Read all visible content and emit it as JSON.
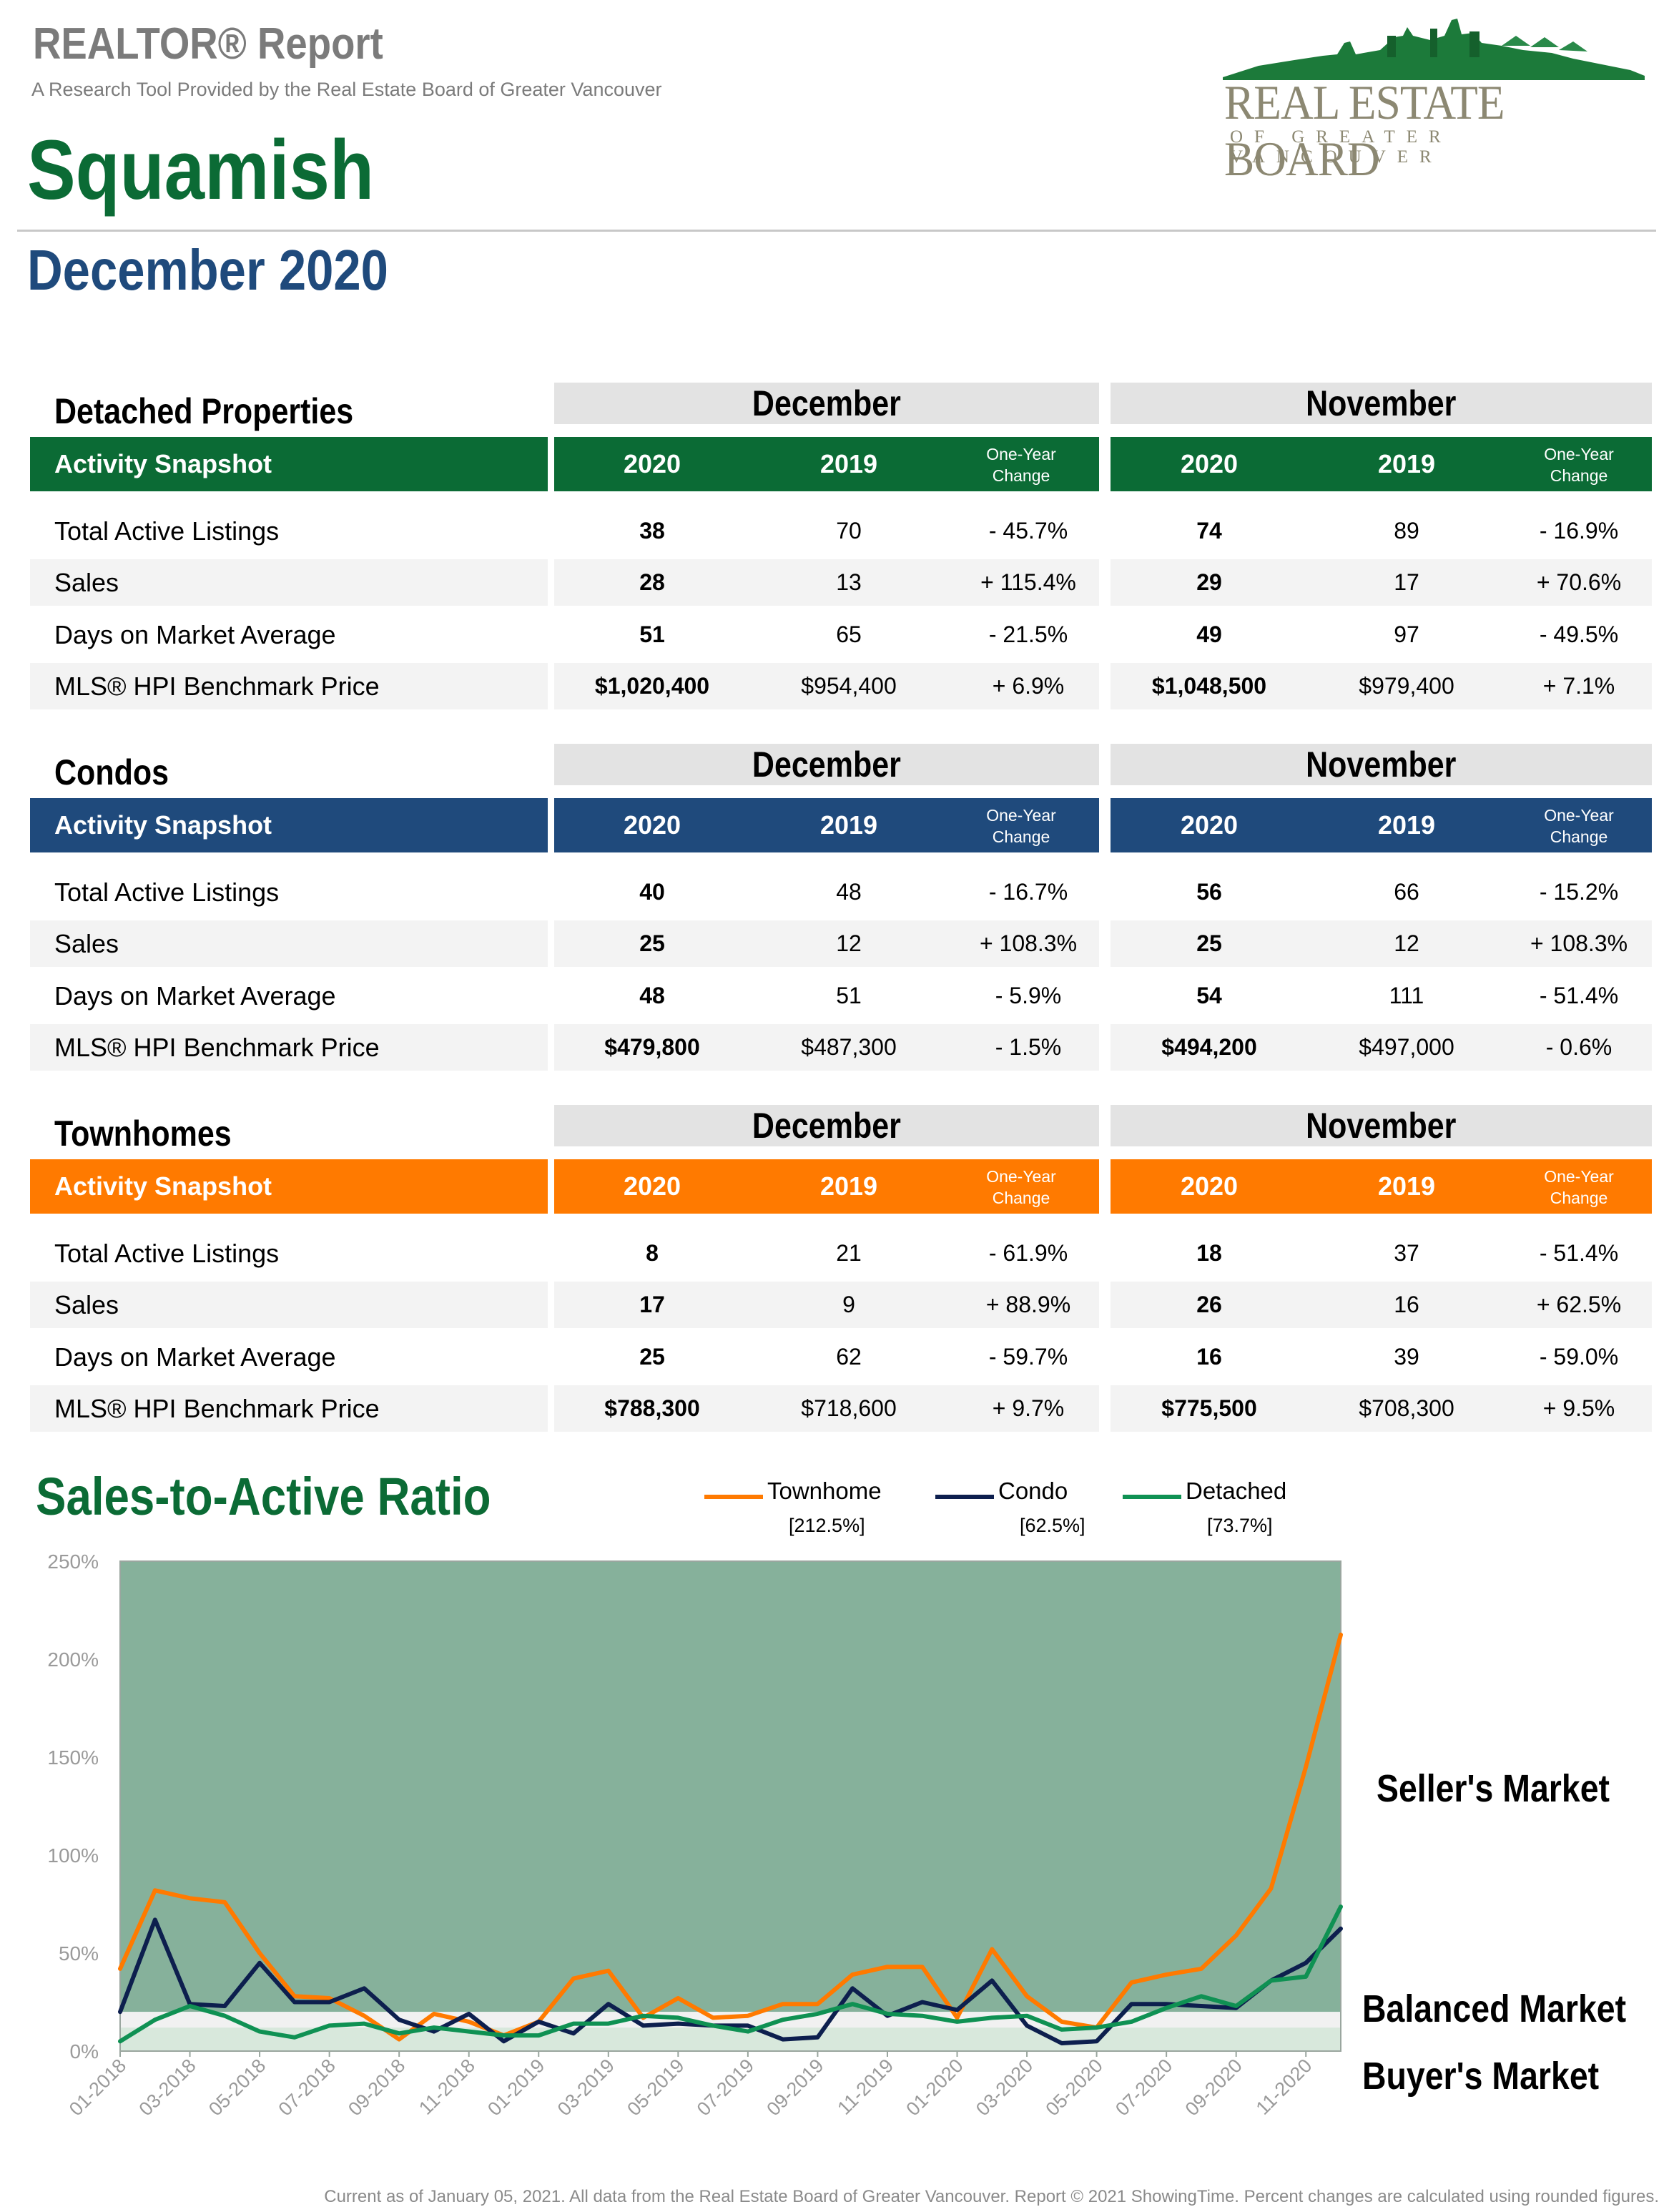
{
  "header": {
    "report_title": "REALTOR® Report",
    "subtitle": "A Research Tool Provided by the Real Estate Board of Greater Vancouver",
    "area": "Squamish",
    "period": "December 2020"
  },
  "logo": {
    "name": "REAL ESTATE BOARD",
    "sub": "OF GREATER VANCOUVER",
    "icon": "city-skyline-logo"
  },
  "labels": {
    "month_current": "December",
    "month_prior": "November",
    "snapshot": "Activity Snapshot",
    "year_current": "2020",
    "year_prior": "2019",
    "change_line1": "One-Year",
    "change_line2": "Change"
  },
  "sections": [
    {
      "title": "Detached Properties",
      "color": "#0b6b35",
      "rows": [
        {
          "label": "Total Active Listings",
          "dec_2020": "38",
          "dec_2019": "70",
          "dec_change": "- 45.7%",
          "nov_2020": "74",
          "nov_2019": "89",
          "nov_change": "- 16.9%"
        },
        {
          "label": "Sales",
          "dec_2020": "28",
          "dec_2019": "13",
          "dec_change": "+ 115.4%",
          "nov_2020": "29",
          "nov_2019": "17",
          "nov_change": "+ 70.6%"
        },
        {
          "label": "Days on Market Average",
          "dec_2020": "51",
          "dec_2019": "65",
          "dec_change": "- 21.5%",
          "nov_2020": "49",
          "nov_2019": "97",
          "nov_change": "- 49.5%"
        },
        {
          "label": "MLS® HPI Benchmark Price",
          "dec_2020": "$1,020,400",
          "dec_2019": "$954,400",
          "dec_change": "+ 6.9%",
          "nov_2020": "$1,048,500",
          "nov_2019": "$979,400",
          "nov_change": "+ 7.1%"
        }
      ]
    },
    {
      "title": "Condos",
      "color": "#1f4a7c",
      "rows": [
        {
          "label": "Total Active Listings",
          "dec_2020": "40",
          "dec_2019": "48",
          "dec_change": "- 16.7%",
          "nov_2020": "56",
          "nov_2019": "66",
          "nov_change": "- 15.2%"
        },
        {
          "label": "Sales",
          "dec_2020": "25",
          "dec_2019": "12",
          "dec_change": "+ 108.3%",
          "nov_2020": "25",
          "nov_2019": "12",
          "nov_change": "+ 108.3%"
        },
        {
          "label": "Days on Market Average",
          "dec_2020": "48",
          "dec_2019": "51",
          "dec_change": "- 5.9%",
          "nov_2020": "54",
          "nov_2019": "111",
          "nov_change": "- 51.4%"
        },
        {
          "label": "MLS® HPI Benchmark Price",
          "dec_2020": "$479,800",
          "dec_2019": "$487,300",
          "dec_change": "- 1.5%",
          "nov_2020": "$494,200",
          "nov_2019": "$497,000",
          "nov_change": "- 0.6%"
        }
      ]
    },
    {
      "title": "Townhomes",
      "color": "#ff7a00",
      "rows": [
        {
          "label": "Total Active Listings",
          "dec_2020": "8",
          "dec_2019": "21",
          "dec_change": "- 61.9%",
          "nov_2020": "18",
          "nov_2019": "37",
          "nov_change": "- 51.4%"
        },
        {
          "label": "Sales",
          "dec_2020": "17",
          "dec_2019": "9",
          "dec_change": "+ 88.9%",
          "nov_2020": "26",
          "nov_2019": "16",
          "nov_change": "+ 62.5%"
        },
        {
          "label": "Days on Market Average",
          "dec_2020": "25",
          "dec_2019": "62",
          "dec_change": "- 59.7%",
          "nov_2020": "16",
          "nov_2019": "39",
          "nov_change": "- 59.0%"
        },
        {
          "label": "MLS® HPI Benchmark Price",
          "dec_2020": "$788,300",
          "dec_2019": "$718,600",
          "dec_change": "+ 9.7%",
          "nov_2020": "$775,500",
          "nov_2019": "$708,300",
          "nov_change": "+ 9.5%"
        }
      ]
    }
  ],
  "chart_data": {
    "type": "line",
    "title": "Sales-to-Active Ratio",
    "x": [
      "01-2018",
      "02-2018",
      "03-2018",
      "04-2018",
      "05-2018",
      "06-2018",
      "07-2018",
      "08-2018",
      "09-2018",
      "10-2018",
      "11-2018",
      "12-2018",
      "01-2019",
      "02-2019",
      "03-2019",
      "04-2019",
      "05-2019",
      "06-2019",
      "07-2019",
      "08-2019",
      "09-2019",
      "10-2019",
      "11-2019",
      "12-2019",
      "01-2020",
      "02-2020",
      "03-2020",
      "04-2020",
      "05-2020",
      "06-2020",
      "07-2020",
      "08-2020",
      "09-2020",
      "10-2020",
      "11-2020",
      "12-2020"
    ],
    "x_tick_labels": [
      "01-2018",
      "03-2018",
      "05-2018",
      "07-2018",
      "09-2018",
      "11-2018",
      "01-2019",
      "03-2019",
      "05-2019",
      "07-2019",
      "09-2019",
      "11-2019",
      "01-2020",
      "03-2020",
      "05-2020",
      "07-2020",
      "09-2020",
      "11-2020"
    ],
    "y_ticks": [
      "0%",
      "50%",
      "100%",
      "150%",
      "200%",
      "250%"
    ],
    "ylim": [
      0,
      250
    ],
    "series": [
      {
        "name": "Townhome",
        "current": "[212.5%]",
        "color": "#ff7a00",
        "values": [
          42,
          82,
          78,
          76,
          50,
          28,
          27,
          18,
          6,
          19,
          15,
          8,
          15,
          37,
          41,
          17,
          27,
          17,
          18,
          24,
          24,
          39,
          43,
          43,
          17,
          52,
          28,
          15,
          12,
          35,
          39,
          42,
          59,
          83,
          145,
          212.5
        ]
      },
      {
        "name": "Condo",
        "current": "[62.5%]",
        "color": "#0d1f4e",
        "values": [
          20,
          67,
          24,
          23,
          45,
          25,
          25,
          32,
          16,
          10,
          19,
          5,
          15,
          9,
          24,
          13,
          14,
          13,
          13,
          6,
          7,
          32,
          18,
          25,
          21,
          36,
          13,
          4,
          5,
          24,
          24,
          23,
          22,
          36,
          45,
          62.5
        ]
      },
      {
        "name": "Detached",
        "current": "[73.7%]",
        "color": "#0f9153",
        "values": [
          5,
          16,
          23,
          18,
          10,
          7,
          13,
          14,
          9,
          12,
          10,
          8,
          8,
          14,
          14,
          18,
          17,
          13,
          10,
          16,
          19,
          24,
          19,
          18,
          15,
          17,
          18,
          11,
          12,
          15,
          22,
          28,
          23,
          36,
          38,
          73.7
        ]
      }
    ],
    "zones": [
      {
        "label": "Seller's Market",
        "from": 20,
        "to": 250,
        "color": "#86b19b"
      },
      {
        "label": "Balanced Market",
        "from": 12,
        "to": 20,
        "color": "#f1f1f1"
      },
      {
        "label": "Buyer's Market",
        "from": 0,
        "to": 12,
        "color": "#d8e8dc"
      }
    ]
  },
  "footer": "Current as of January 05, 2021. All data from the Real Estate Board of Greater Vancouver. Report © 2021 ShowingTime. Percent changes are calculated using rounded figures."
}
